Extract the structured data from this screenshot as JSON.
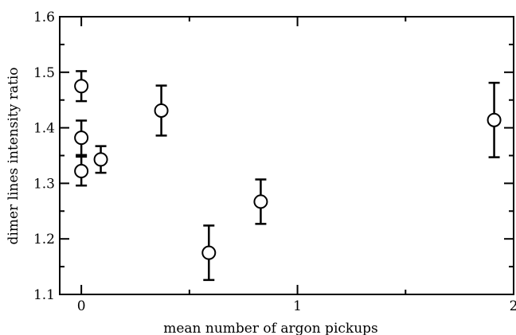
{
  "chart_data": {
    "type": "scatter",
    "xlabel": "mean number of argon pickups",
    "ylabel": "dimer lines intensity ratio",
    "xlim": [
      -0.1,
      2.0
    ],
    "ylim": [
      1.1,
      1.6
    ],
    "x_ticks": [
      0,
      1,
      2
    ],
    "x_tick_labels": [
      "0",
      "1",
      "2"
    ],
    "y_ticks": [
      1.1,
      1.2,
      1.3,
      1.4,
      1.5,
      1.6
    ],
    "y_tick_labels": [
      "1.1",
      "1.2",
      "1.3",
      "1.4",
      "1.5",
      "1.6"
    ],
    "grid": false,
    "marker": "open-circle",
    "color": "#000000",
    "points": [
      {
        "x": 0.0,
        "y": 1.475,
        "err": 0.027
      },
      {
        "x": 0.0,
        "y": 1.382,
        "err": 0.031
      },
      {
        "x": 0.0,
        "y": 1.322,
        "err": 0.026
      },
      {
        "x": 0.09,
        "y": 1.343,
        "err": 0.024
      },
      {
        "x": 0.37,
        "y": 1.431,
        "err": 0.045
      },
      {
        "x": 0.59,
        "y": 1.175,
        "err": 0.049
      },
      {
        "x": 0.83,
        "y": 1.267,
        "err": 0.04
      },
      {
        "x": 1.91,
        "y": 1.414,
        "err": 0.067
      }
    ]
  }
}
